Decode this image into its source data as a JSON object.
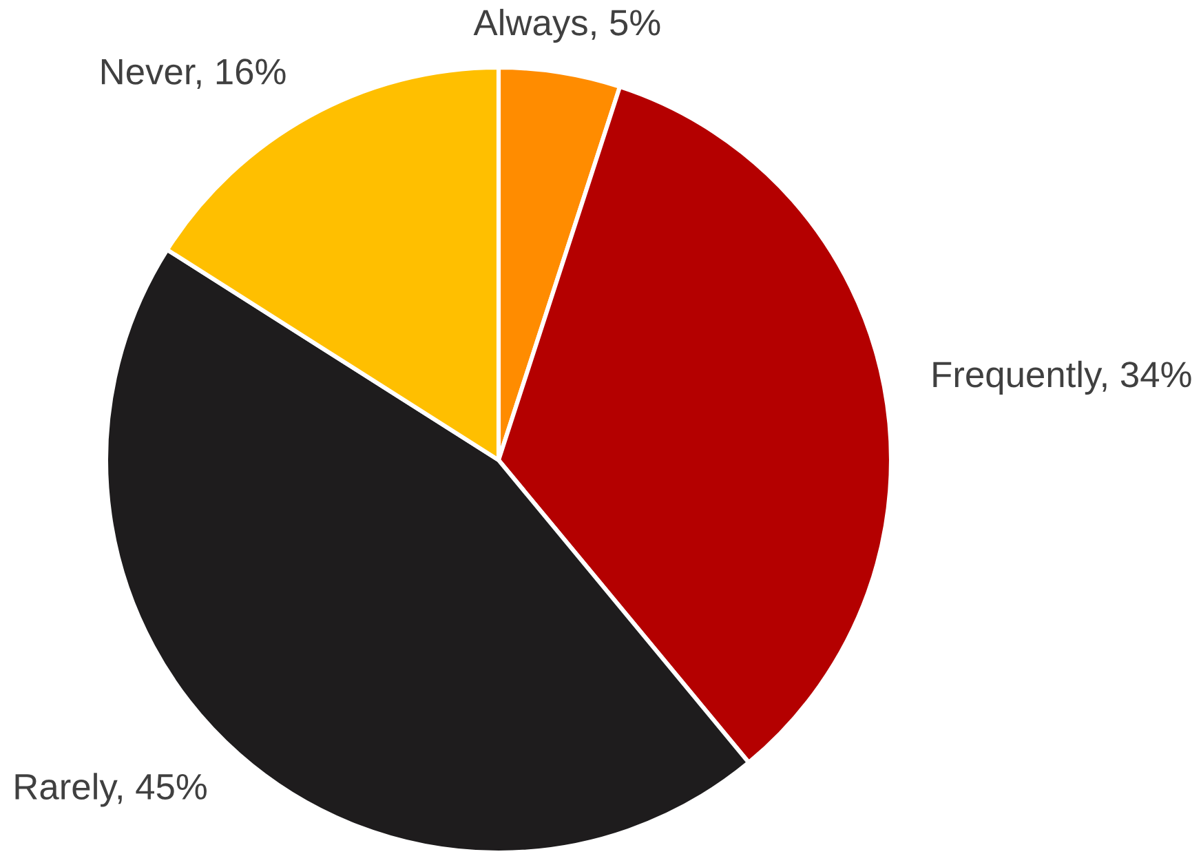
{
  "chart_data": {
    "type": "pie",
    "categories": [
      "Always",
      "Frequently",
      "Rarely",
      "Never"
    ],
    "values": [
      5,
      34,
      45,
      16
    ],
    "colors": [
      "#ff8c00",
      "#b40000",
      "#1e1c1d",
      "#ffbf00"
    ],
    "value_labels": [
      "5%",
      "34%",
      "45%",
      "16%"
    ]
  }
}
